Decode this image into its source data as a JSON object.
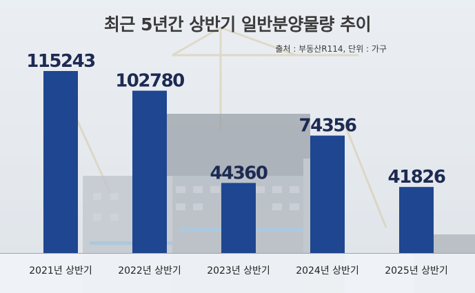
{
  "title": "최근 5년간 상반기 일반분양물량 추이",
  "source_note": "출처 : 부동산R114, 단위 : 가구",
  "colors": {
    "bar": "#1f4690",
    "value_text": "#1d2a52"
  },
  "chart_data": {
    "type": "bar",
    "title": "최근 5년간 상반기 일반분양물량 추이",
    "categories": [
      "2021년 상반기",
      "2022년 상반기",
      "2023년 상반기",
      "2024년 상반기",
      "2025년 상반기"
    ],
    "values": [
      115243,
      102780,
      44360,
      74356,
      41826
    ],
    "data_labels": [
      "115243",
      "102780",
      "44360",
      "74356",
      "41826"
    ],
    "unit": "가구",
    "xlabel": "",
    "ylabel": "",
    "ylim": [
      0,
      115243
    ],
    "grid": false,
    "legend": "none"
  }
}
